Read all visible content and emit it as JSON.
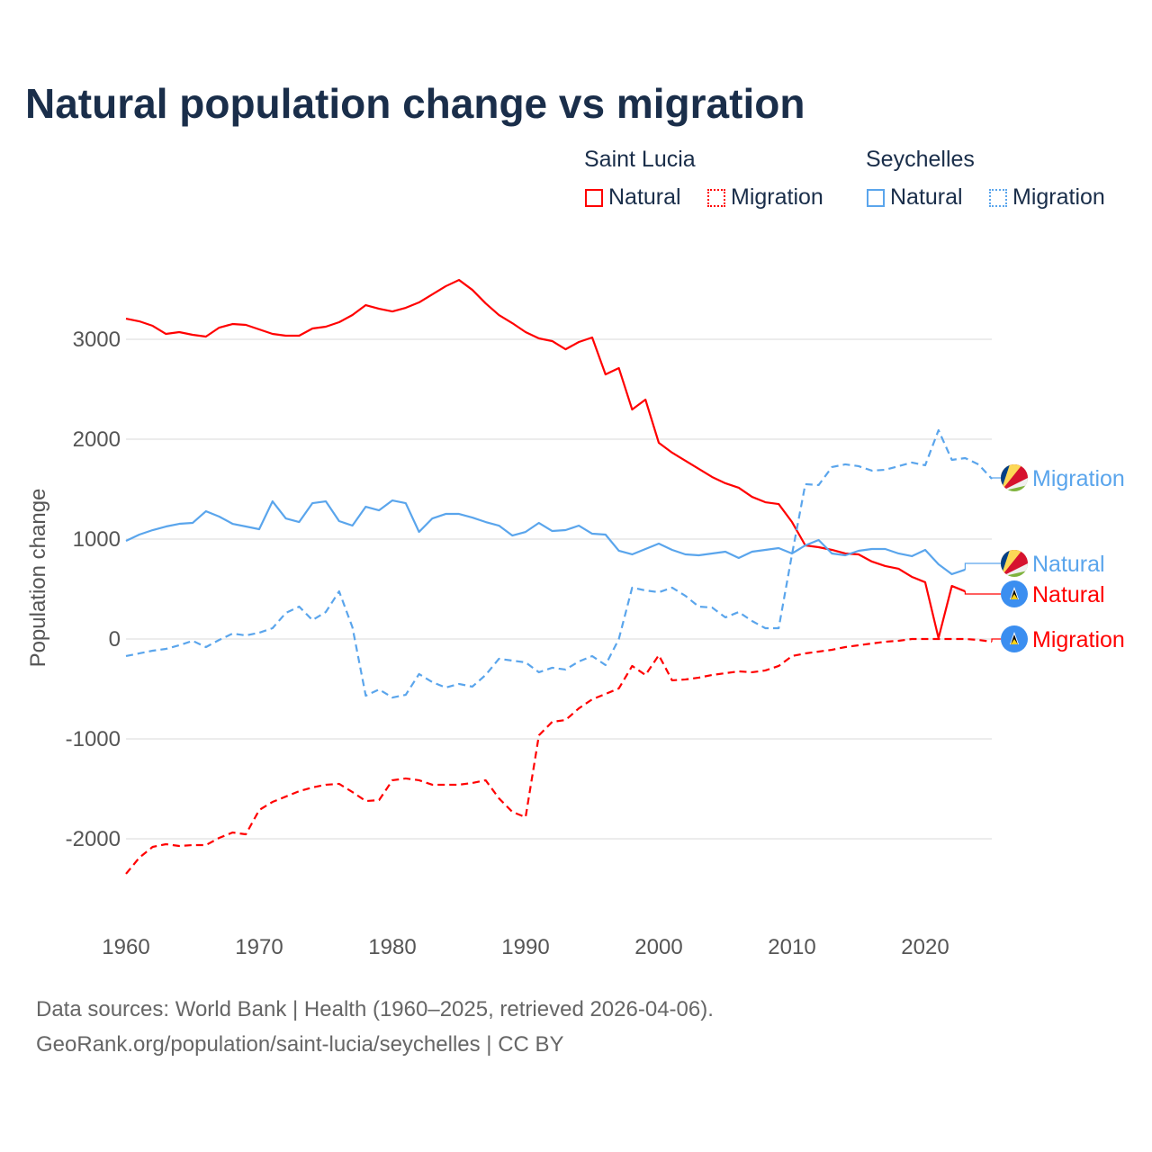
{
  "title": "Natural population change vs migration",
  "legend": {
    "groups": [
      {
        "name": "Saint Lucia",
        "color": "#ff0000",
        "items": [
          "Natural",
          "Migration"
        ]
      },
      {
        "name": "Seychelles",
        "color": "#5aa5ec",
        "items": [
          "Natural",
          "Migration"
        ]
      }
    ]
  },
  "footer": {
    "line1": "Data sources: World Bank | Health (1960–2025, retrieved 2026-04-06).",
    "line2": "GeoRank.org/population/saint-lucia/seychelles | CC BY"
  },
  "chart_data": {
    "type": "line",
    "title": "Natural population change vs migration",
    "xlabel": "",
    "ylabel": "Population change",
    "xlim": [
      1960,
      2025
    ],
    "ylim": [
      -2500,
      3700
    ],
    "xticks": [
      1960,
      1970,
      1980,
      1990,
      2000,
      2010,
      2020
    ],
    "yticks": [
      -2000,
      -1000,
      0,
      1000,
      2000,
      3000
    ],
    "grid": true,
    "legend_position": "top-right",
    "series": [
      {
        "name": "Saint Lucia Natural",
        "country": "Saint Lucia",
        "kind": "Natural",
        "color": "#ff0000",
        "dashed": false,
        "end_label": "Natural",
        "start": 1960,
        "values": [
          3207,
          3180,
          3135,
          3054,
          3072,
          3045,
          3027,
          3117,
          3153,
          3144,
          3099,
          3054,
          3036,
          3036,
          3108,
          3126,
          3171,
          3243,
          3342,
          3306,
          3279,
          3315,
          3369,
          3450,
          3531,
          3594,
          3495,
          3360,
          3243,
          3162,
          3072,
          3009,
          2982,
          2900,
          2973,
          3018,
          2649,
          2712,
          2297,
          2396,
          1964,
          1865,
          1784,
          1703,
          1622,
          1559,
          1514,
          1423,
          1369,
          1351,
          1171,
          937,
          919,
          892,
          856,
          847,
          775,
          730,
          703,
          622,
          568,
          9,
          531,
          477
        ]
      },
      {
        "name": "Saint Lucia Migration",
        "country": "Saint Lucia",
        "kind": "Migration",
        "color": "#ff0000",
        "dashed": true,
        "end_label": "Migration",
        "start": 1960,
        "values": [
          -2351,
          -2189,
          -2081,
          -2054,
          -2072,
          -2063,
          -2063,
          -1991,
          -1937,
          -1955,
          -1712,
          -1631,
          -1577,
          -1523,
          -1486,
          -1459,
          -1450,
          -1532,
          -1622,
          -1613,
          -1414,
          -1396,
          -1414,
          -1459,
          -1459,
          -1459,
          -1441,
          -1414,
          -1595,
          -1730,
          -1784,
          -964,
          -829,
          -811,
          -694,
          -604,
          -550,
          -495,
          -270,
          -360,
          -162,
          -414,
          -405,
          -387,
          -360,
          -342,
          -324,
          -333,
          -315,
          -270,
          -171,
          -144,
          -126,
          -108,
          -81,
          -63,
          -45,
          -27,
          -18,
          0,
          0,
          0,
          0,
          0,
          -9,
          -27
        ]
      },
      {
        "name": "Seychelles Natural",
        "country": "Seychelles",
        "kind": "Natural",
        "color": "#5aa5ec",
        "dashed": false,
        "end_label": "Natural",
        "start": 1960,
        "values": [
          982,
          1045,
          1090,
          1126,
          1153,
          1162,
          1279,
          1225,
          1153,
          1126,
          1099,
          1378,
          1207,
          1171,
          1360,
          1378,
          1180,
          1135,
          1324,
          1288,
          1387,
          1360,
          1072,
          1207,
          1252,
          1252,
          1216,
          1171,
          1135,
          1036,
          1072,
          1162,
          1081,
          1090,
          1135,
          1054,
          1045,
          883,
          847,
          901,
          955,
          892,
          847,
          838,
          856,
          874,
          811,
          874,
          892,
          910,
          856,
          937,
          991,
          856,
          838,
          883,
          901,
          901,
          856,
          829,
          892,
          748,
          649,
          694
        ]
      },
      {
        "name": "Seychelles Migration",
        "country": "Seychelles",
        "kind": "Migration",
        "color": "#5aa5ec",
        "dashed": true,
        "end_label": "Migration",
        "start": 1960,
        "values": [
          -171,
          -144,
          -117,
          -99,
          -63,
          -18,
          -81,
          -9,
          54,
          36,
          63,
          108,
          261,
          324,
          189,
          270,
          477,
          117,
          -568,
          -505,
          -586,
          -559,
          -351,
          -432,
          -486,
          -450,
          -477,
          -360,
          -198,
          -216,
          -234,
          -333,
          -288,
          -306,
          -225,
          -171,
          -261,
          0,
          514,
          486,
          468,
          514,
          432,
          324,
          315,
          216,
          270,
          180,
          108,
          108,
          847,
          1550,
          1541,
          1721,
          1748,
          1730,
          1685,
          1694,
          1730,
          1766,
          1739,
          2090,
          1793,
          1811,
          1748,
          1604
        ]
      }
    ]
  }
}
